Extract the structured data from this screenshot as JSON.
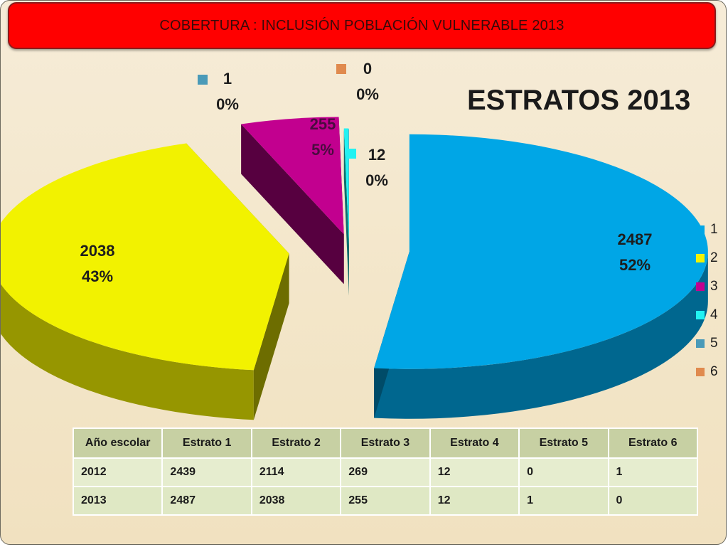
{
  "header": {
    "title": "COBERTURA :  INCLUSIÓN POBLACIÓN VULNERABLE  2013"
  },
  "chart_data": {
    "type": "pie",
    "title": "ESTRATOS 2013",
    "categories": [
      "1",
      "2",
      "3",
      "4",
      "5",
      "6"
    ],
    "values": [
      2487,
      2038,
      255,
      12,
      1,
      0
    ],
    "percent_labels": [
      "52%",
      "43%",
      "5%",
      "0%",
      "0%",
      "0%"
    ],
    "value_labels": [
      "2487",
      "2038",
      "255",
      "12",
      "1",
      "0"
    ],
    "colors": [
      "#00a6e6",
      "#f2f200",
      "#c2008f",
      "#22f2f2",
      "#4a9ab8",
      "#e08a4e"
    ],
    "legend_position": "right",
    "style": "3d-exploded"
  },
  "table": {
    "headers": [
      "Año escolar",
      "Estrato 1",
      "Estrato 2",
      "Estrato 3",
      "Estrato 4",
      "Estrato 5",
      "Estrato  6"
    ],
    "rows": [
      [
        "2012",
        "2439",
        "2114",
        "269",
        "12",
        "0",
        "1"
      ],
      [
        "2013",
        "2487",
        "2038",
        "255",
        "12",
        "1",
        "0"
      ]
    ]
  }
}
